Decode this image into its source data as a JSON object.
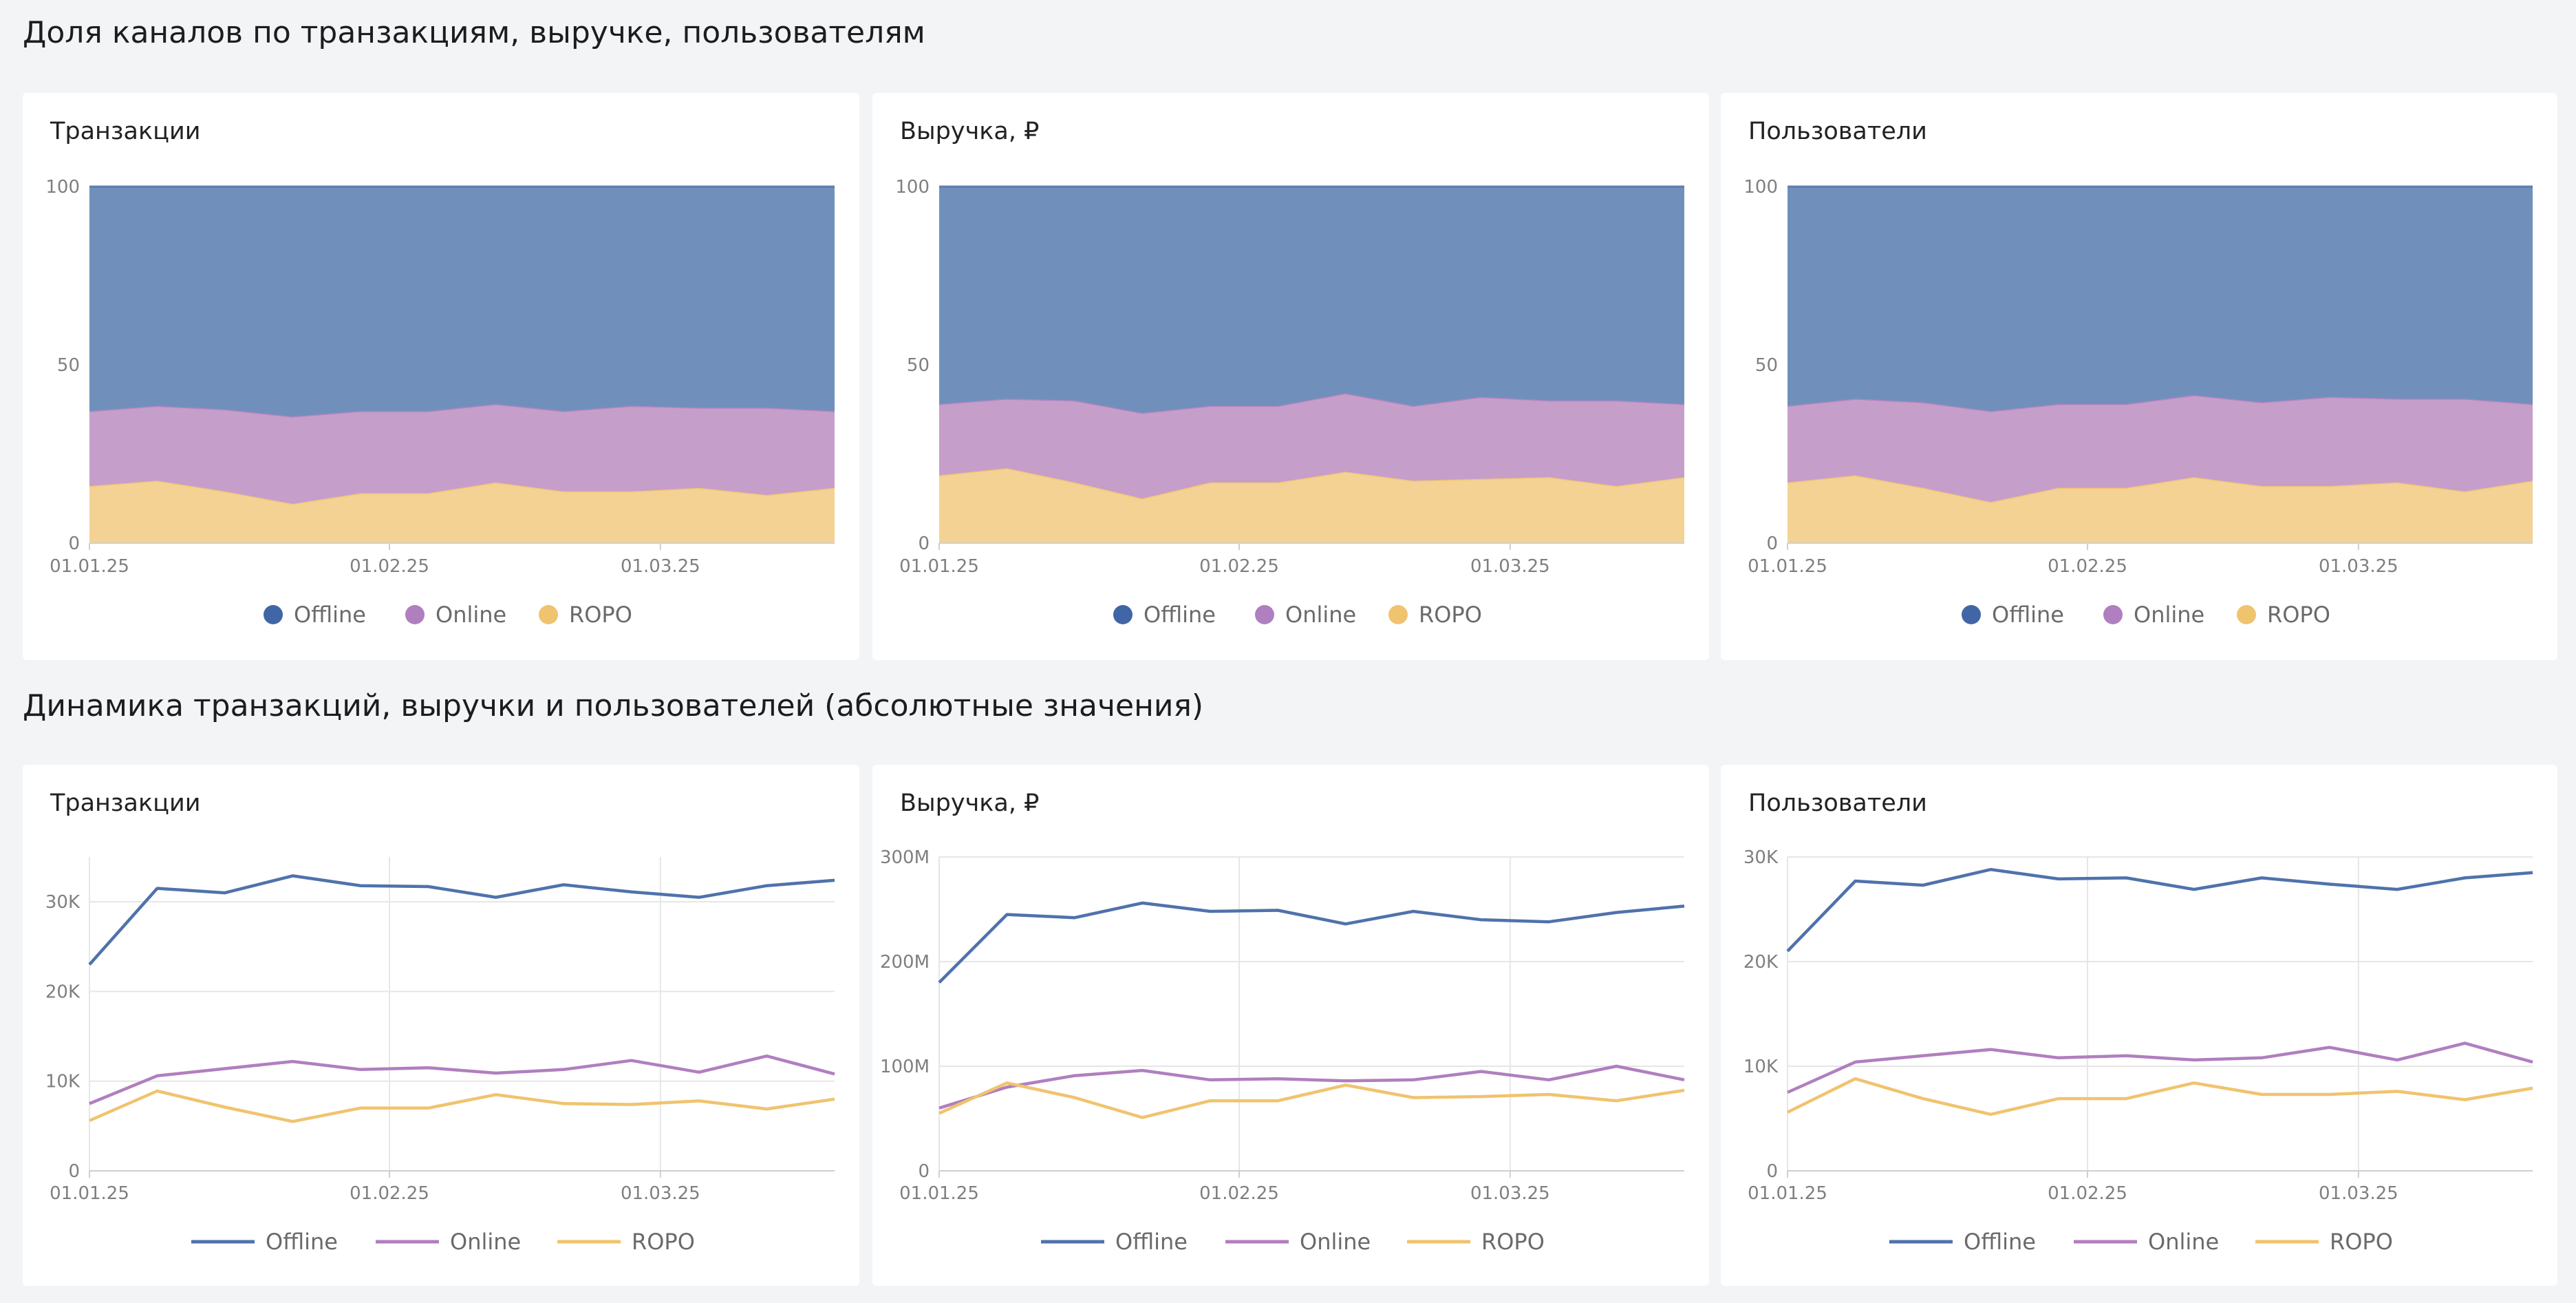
{
  "sections": [
    {
      "title": "Доля каналов по транзакциям, выручке, пользователям"
    },
    {
      "title": "Динамика транзакций, выручки и пользователей (абсолютные значения)"
    }
  ],
  "colors": {
    "offline": "#4f72ab",
    "online": "#b07fbf",
    "ropo": "#f0c36e",
    "offline_area": "#7090bb",
    "online_area": "#c69eca",
    "ropo_area": "#f3d294",
    "grid": "#e6e6e6",
    "axis": "#cfcfcf"
  },
  "legend": [
    "Offline",
    "Online",
    "ROPO"
  ],
  "chart_data": [
    {
      "type": "area",
      "stacked_percent": true,
      "title": "Транзакции",
      "x": [
        "01.01.25",
        "08.01.25",
        "15.01.25",
        "22.01.25",
        "29.01.25",
        "05.02.25",
        "12.02.25",
        "19.02.25",
        "26.02.25",
        "05.03.25",
        "12.03.25",
        "19.03.25"
      ],
      "x_ticks": [
        "01.01.25",
        "01.02.25",
        "01.03.25"
      ],
      "y_ticks": [
        "0",
        "50",
        "100"
      ],
      "ylim": [
        0,
        100
      ],
      "series": [
        {
          "name": "Offline",
          "values": [
            63,
            61.5,
            62.5,
            64.5,
            63,
            63,
            61,
            63,
            61.5,
            62,
            62,
            63
          ]
        },
        {
          "name": "Online",
          "values": [
            21,
            21,
            23,
            24.5,
            23,
            23,
            22,
            22.5,
            24,
            22.5,
            24.5,
            21.5
          ]
        },
        {
          "name": "ROPO",
          "values": [
            16,
            17.5,
            14.5,
            11,
            14,
            14,
            17,
            14.5,
            14.5,
            15.5,
            13.5,
            15.5
          ]
        }
      ],
      "legend_position": "bottom"
    },
    {
      "type": "area",
      "stacked_percent": true,
      "title": "Выручка, ₽",
      "x": [
        "01.01.25",
        "08.01.25",
        "15.01.25",
        "22.01.25",
        "29.01.25",
        "05.02.25",
        "12.02.25",
        "19.02.25",
        "26.02.25",
        "05.03.25",
        "12.03.25",
        "19.03.25"
      ],
      "x_ticks": [
        "01.01.25",
        "01.02.25",
        "01.03.25"
      ],
      "y_ticks": [
        "0",
        "50",
        "100"
      ],
      "ylim": [
        0,
        100
      ],
      "series": [
        {
          "name": "Offline",
          "values": [
            61,
            59.5,
            60,
            63.5,
            61.5,
            61.5,
            58,
            61.5,
            59,
            60,
            60,
            61
          ]
        },
        {
          "name": "Online",
          "values": [
            20,
            19.5,
            23,
            24,
            21.5,
            21.5,
            22,
            21,
            23,
            21.5,
            24,
            20.5
          ]
        },
        {
          "name": "ROPO",
          "values": [
            19,
            21,
            17,
            12.5,
            17,
            17,
            20,
            17.5,
            18,
            18.5,
            16,
            18.5
          ]
        }
      ],
      "legend_position": "bottom"
    },
    {
      "type": "area",
      "stacked_percent": true,
      "title": "Пользователи",
      "x": [
        "01.01.25",
        "08.01.25",
        "15.01.25",
        "22.01.25",
        "29.01.25",
        "05.02.25",
        "12.02.25",
        "19.02.25",
        "26.02.25",
        "05.03.25",
        "12.03.25",
        "19.03.25"
      ],
      "x_ticks": [
        "01.01.25",
        "01.02.25",
        "01.03.25"
      ],
      "y_ticks": [
        "0",
        "50",
        "100"
      ],
      "ylim": [
        0,
        100
      ],
      "series": [
        {
          "name": "Offline",
          "values": [
            61.5,
            59.5,
            60.5,
            63,
            61,
            61,
            58.5,
            60.5,
            59,
            59.5,
            59.5,
            61
          ]
        },
        {
          "name": "Online",
          "values": [
            21.5,
            21.5,
            24,
            25.5,
            23.5,
            23.5,
            23,
            23.5,
            25,
            23.5,
            26,
            21.5
          ]
        },
        {
          "name": "ROPO",
          "values": [
            17,
            19,
            15.5,
            11.5,
            15.5,
            15.5,
            18.5,
            16,
            16,
            17,
            14.5,
            17.5
          ]
        }
      ],
      "legend_position": "bottom"
    },
    {
      "type": "line",
      "title": "Транзакции",
      "x": [
        "01.01.25",
        "08.01.25",
        "15.01.25",
        "22.01.25",
        "29.01.25",
        "05.02.25",
        "12.02.25",
        "19.02.25",
        "26.02.25",
        "05.03.25",
        "12.03.25",
        "19.03.25"
      ],
      "x_ticks": [
        "01.01.25",
        "01.02.25",
        "01.03.25"
      ],
      "y_ticks": [
        "0",
        "10K",
        "20K",
        "30K"
      ],
      "ylim": [
        0,
        35000
      ],
      "series": [
        {
          "name": "Offline",
          "values": [
            23000,
            31500,
            31000,
            32900,
            31800,
            31700,
            30500,
            31900,
            31100,
            30500,
            31800,
            32400
          ]
        },
        {
          "name": "Online",
          "values": [
            7500,
            10600,
            11400,
            12200,
            11300,
            11500,
            10900,
            11300,
            12300,
            11000,
            12800,
            10800
          ]
        },
        {
          "name": "ROPO",
          "values": [
            5600,
            8900,
            7100,
            5500,
            7000,
            7000,
            8500,
            7500,
            7400,
            7800,
            6900,
            8000
          ]
        }
      ],
      "grid": true,
      "legend_position": "bottom"
    },
    {
      "type": "line",
      "title": "Выручка, ₽",
      "x": [
        "01.01.25",
        "08.01.25",
        "15.01.25",
        "22.01.25",
        "29.01.25",
        "05.02.25",
        "12.02.25",
        "19.02.25",
        "26.02.25",
        "05.03.25",
        "12.03.25",
        "19.03.25"
      ],
      "x_ticks": [
        "01.01.25",
        "01.02.25",
        "01.03.25"
      ],
      "y_ticks": [
        "0",
        "100M",
        "200M",
        "300M"
      ],
      "ylim": [
        0,
        300000000
      ],
      "series": [
        {
          "name": "Offline",
          "values": [
            180000000,
            245000000,
            242000000,
            256000000,
            248000000,
            249000000,
            236000000,
            248000000,
            240000000,
            238000000,
            247000000,
            253000000
          ]
        },
        {
          "name": "Online",
          "values": [
            60000000,
            80000000,
            91000000,
            96000000,
            87000000,
            88000000,
            86000000,
            87000000,
            95000000,
            87000000,
            100000000,
            87000000
          ]
        },
        {
          "name": "ROPO",
          "values": [
            55000000,
            84000000,
            70000000,
            51000000,
            67000000,
            67000000,
            82000000,
            70000000,
            71000000,
            73000000,
            67000000,
            77000000
          ]
        }
      ],
      "grid": true,
      "legend_position": "bottom"
    },
    {
      "type": "line",
      "title": "Пользователи",
      "x": [
        "01.01.25",
        "08.01.25",
        "15.01.25",
        "22.01.25",
        "29.01.25",
        "05.02.25",
        "12.02.25",
        "19.02.25",
        "26.02.25",
        "05.03.25",
        "12.03.25",
        "19.03.25"
      ],
      "x_ticks": [
        "01.01.25",
        "01.02.25",
        "01.03.25"
      ],
      "y_ticks": [
        "0",
        "10K",
        "20K",
        "30K"
      ],
      "ylim": [
        0,
        30000
      ],
      "series": [
        {
          "name": "Offline",
          "values": [
            21000,
            27700,
            27300,
            28800,
            27900,
            28000,
            26900,
            28000,
            27400,
            26900,
            28000,
            28500
          ]
        },
        {
          "name": "Online",
          "values": [
            7500,
            10400,
            11000,
            11600,
            10800,
            11000,
            10600,
            10800,
            11800,
            10600,
            12200,
            10400
          ]
        },
        {
          "name": "ROPO",
          "values": [
            5600,
            8800,
            6900,
            5400,
            6900,
            6900,
            8400,
            7300,
            7300,
            7600,
            6800,
            7900
          ]
        }
      ],
      "grid": true,
      "legend_position": "bottom"
    }
  ]
}
